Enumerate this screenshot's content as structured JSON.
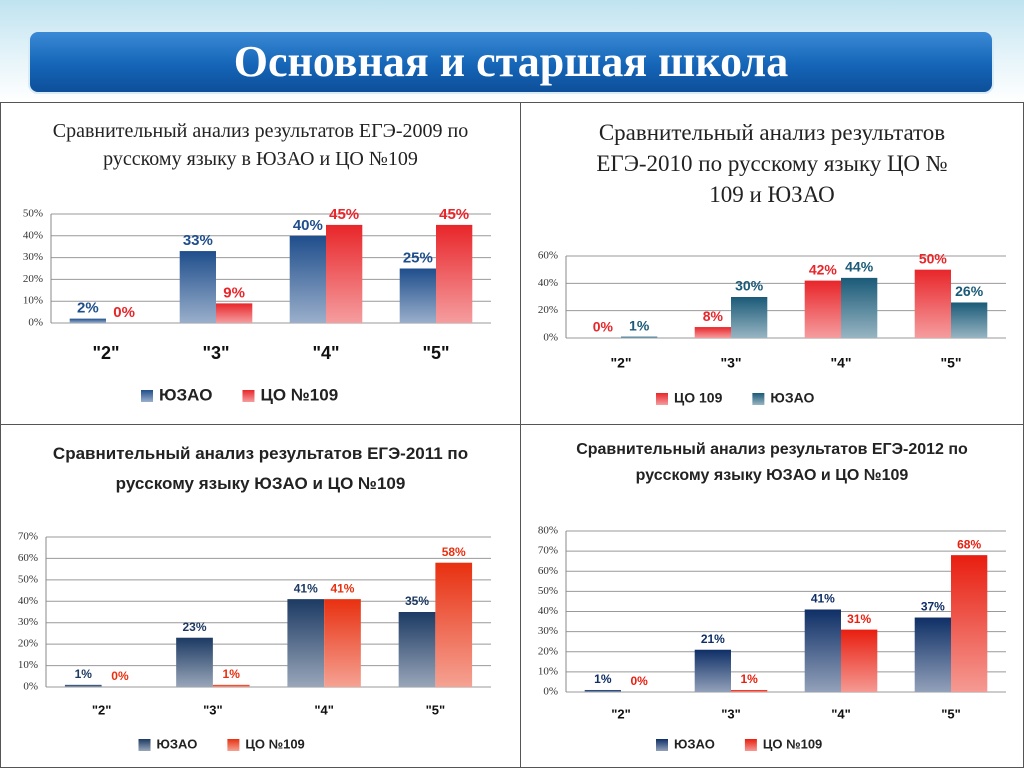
{
  "slide_title": "Основная  и старшая школа",
  "chart_data": [
    {
      "type": "bar",
      "title": "Сравнительный анализ результатов ЕГЭ-2009 по русскому языку в ЮЗАО и ЦО №109",
      "categories": [
        "\"2\"",
        "\"3\"",
        "\"4\"",
        "\"5\""
      ],
      "series": [
        {
          "name": "ЮЗАО",
          "color": "#1f4e8c",
          "values": [
            2,
            33,
            40,
            25
          ],
          "value_labels": [
            "2%",
            "33%",
            "40%",
            "25%"
          ]
        },
        {
          "name": "ЦО №109",
          "color": "#e8262a",
          "values": [
            0,
            9,
            45,
            45
          ],
          "value_labels": [
            "0%",
            "9%",
            "45%",
            "45%"
          ]
        }
      ],
      "ylim": [
        0,
        50
      ],
      "yticks": [
        {
          "value": 0,
          "label": "0%"
        },
        {
          "value": 10,
          "label": "10%"
        },
        {
          "value": 20,
          "label": "20%"
        },
        {
          "value": 30,
          "label": "30%"
        },
        {
          "value": 40,
          "label": "40%"
        },
        {
          "value": 50,
          "label": "50%"
        }
      ],
      "grid": true
    },
    {
      "type": "bar",
      "title": "Сравнительный анализ результатов ЕГЭ-2010 по русскому языку ЦО № 109 и ЮЗАО",
      "categories": [
        "\"2\"",
        "\"3\"",
        "\"4\"",
        "\"5\""
      ],
      "series": [
        {
          "name": "ЦО 109",
          "color": "#e8262a",
          "values": [
            0,
            8,
            42,
            50
          ],
          "value_labels": [
            "0%",
            "8%",
            "42%",
            "50%"
          ]
        },
        {
          "name": "ЮЗАО",
          "color": "#1a5a78",
          "values": [
            1,
            30,
            44,
            26
          ],
          "value_labels": [
            "1%",
            "30%",
            "44%",
            "26%"
          ]
        }
      ],
      "ylim": [
        0,
        60
      ],
      "yticks": [
        {
          "value": 0,
          "label": "0%"
        },
        {
          "value": 20,
          "label": "20%"
        },
        {
          "value": 40,
          "label": "40%"
        },
        {
          "value": 60,
          "label": "60%"
        }
      ],
      "grid": true
    },
    {
      "type": "bar",
      "title": "Сравнительный анализ результатов ЕГЭ-2011 по русскому языку ЮЗАО и ЦО №109",
      "categories": [
        "\"2\"",
        "\"3\"",
        "\"4\"",
        "\"5\""
      ],
      "series": [
        {
          "name": "ЮЗАО",
          "color": "#1c3a63",
          "values": [
            1,
            23,
            41,
            35
          ],
          "value_labels": [
            "1%",
            "23%",
            "41%",
            "35%"
          ]
        },
        {
          "name": "ЦО №109",
          "color": "#e83010",
          "values": [
            0,
            1,
            41,
            58
          ],
          "value_labels": [
            "0%",
            "1%",
            "41%",
            "58%"
          ]
        }
      ],
      "ylim": [
        0,
        70
      ],
      "yticks": [
        {
          "value": 0,
          "label": "0%"
        },
        {
          "value": 10,
          "label": "10%"
        },
        {
          "value": 20,
          "label": "20%"
        },
        {
          "value": 30,
          "label": "30%"
        },
        {
          "value": 40,
          "label": "40%"
        },
        {
          "value": 50,
          "label": "50%"
        },
        {
          "value": 60,
          "label": "60%"
        },
        {
          "value": 70,
          "label": "70%"
        }
      ],
      "grid": true
    },
    {
      "type": "bar",
      "title": "Сравнительный анализ результатов ЕГЭ-2012 по русскому языку ЮЗАО и ЦО №109",
      "categories": [
        "\"2\"",
        "\"3\"",
        "\"4\"",
        "\"5\""
      ],
      "series": [
        {
          "name": "ЮЗАО",
          "color": "#0e2f66",
          "values": [
            1,
            21,
            41,
            37
          ],
          "value_labels": [
            "1%",
            "21%",
            "41%",
            "37%"
          ]
        },
        {
          "name": "ЦО №109",
          "color": "#e81e10",
          "values": [
            0,
            1,
            31,
            68
          ],
          "value_labels": [
            "0%",
            "1%",
            "31%",
            "68%"
          ]
        }
      ],
      "ylim": [
        0,
        80
      ],
      "yticks": [
        {
          "value": 0,
          "label": "0%"
        },
        {
          "value": 10,
          "label": "10%"
        },
        {
          "value": 20,
          "label": "20%"
        },
        {
          "value": 30,
          "label": "30%"
        },
        {
          "value": 40,
          "label": "40%"
        },
        {
          "value": 50,
          "label": "50%"
        },
        {
          "value": 60,
          "label": "60%"
        },
        {
          "value": 70,
          "label": "70%"
        },
        {
          "value": 80,
          "label": "80%"
        }
      ],
      "grid": true
    }
  ]
}
